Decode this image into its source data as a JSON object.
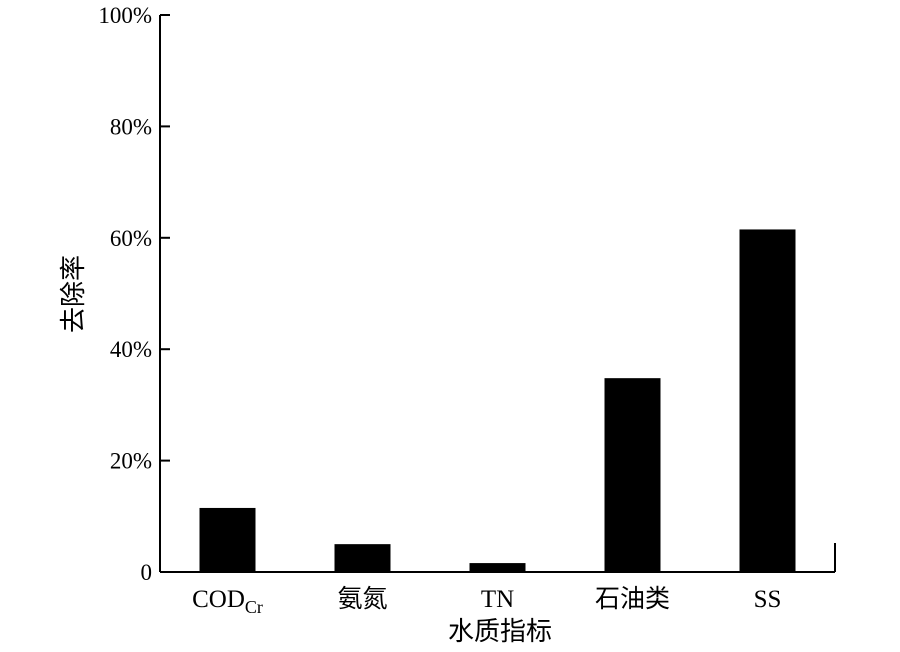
{
  "chart_data": {
    "type": "bar",
    "categories": [
      {
        "main": "COD",
        "sub": "Cr"
      },
      {
        "main": "氨氮",
        "sub": ""
      },
      {
        "main": "TN",
        "sub": ""
      },
      {
        "main": "石油类",
        "sub": ""
      },
      {
        "main": "SS",
        "sub": ""
      }
    ],
    "values": [
      11.5,
      5.0,
      1.6,
      34.8,
      61.5
    ],
    "value_unit": "%",
    "yticks": [
      "0",
      "20%",
      "40%",
      "60%",
      "80%",
      "100%"
    ],
    "ylim": [
      0,
      100
    ],
    "xlabel": "水质指标",
    "ylabel": "去除率",
    "title": "",
    "bar_color": "#000000",
    "grid": false,
    "legend": "none"
  }
}
